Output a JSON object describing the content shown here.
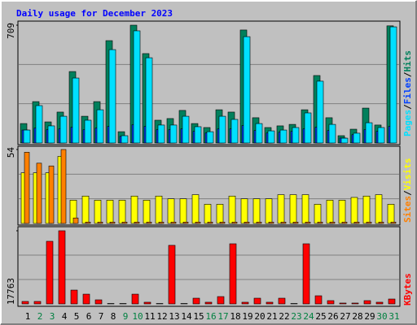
{
  "chart_data": [
    {
      "type": "bar",
      "title": "Daily usage for December 2023",
      "categories": [
        "1",
        "2",
        "3",
        "4",
        "5",
        "6",
        "7",
        "8",
        "9",
        "10",
        "11",
        "12",
        "13",
        "14",
        "15",
        "16",
        "17",
        "18",
        "19",
        "20",
        "21",
        "22",
        "23",
        "24",
        "25",
        "26",
        "27",
        "28",
        "29",
        "30",
        "31"
      ],
      "category_colors": [
        "#000000",
        "#008040",
        "#008040",
        "#000000",
        "#000000",
        "#000000",
        "#000000",
        "#000000",
        "#008040",
        "#008040",
        "#000000",
        "#000000",
        "#000000",
        "#000000",
        "#000000",
        "#008040",
        "#008040",
        "#000000",
        "#000000",
        "#000000",
        "#000000",
        "#000000",
        "#008040",
        "#008040",
        "#000000",
        "#000000",
        "#000000",
        "#000000",
        "#000000",
        "#008040",
        "#008040"
      ],
      "ylim": [
        0,
        709
      ],
      "yticks": [
        709
      ],
      "series": [
        {
          "name": "Hits",
          "color": "#00805c",
          "values": [
            117,
            249,
            127,
            186,
            430,
            161,
            249,
            616,
            68,
            709,
            538,
            137,
            147,
            196,
            117,
            93,
            200,
            186,
            680,
            152,
            93,
            103,
            112,
            200,
            406,
            152,
            44,
            83,
            210,
            108,
            705
          ]
        },
        {
          "name": "Files",
          "color": "#0040ff",
          "values": [
            78,
            90,
            80,
            85,
            95,
            80,
            90,
            100,
            40,
            110,
            100,
            80,
            80,
            85,
            70,
            60,
            85,
            85,
            105,
            75,
            60,
            65,
            70,
            85,
            95,
            75,
            30,
            50,
            80,
            70,
            100
          ]
        },
        {
          "name": "Pages",
          "color": "#00e0ff",
          "values": [
            78,
            225,
            103,
            161,
            391,
            137,
            200,
            562,
            44,
            675,
            513,
            108,
            108,
            161,
            98,
            68,
            161,
            142,
            640,
            117,
            73,
            78,
            93,
            181,
            372,
            112,
            29,
            59,
            122,
            93,
            699
          ]
        }
      ]
    },
    {
      "type": "bar",
      "ylim": [
        0,
        54
      ],
      "yticks": [
        54
      ],
      "series": [
        {
          "name": "Visits",
          "color": "#ffff00",
          "values": [
            37,
            37,
            37,
            49,
            17,
            20,
            17,
            17,
            17,
            20,
            17,
            20,
            18,
            18,
            21,
            14,
            14,
            20,
            18,
            18,
            18,
            21,
            21,
            21,
            14,
            17,
            17,
            19,
            20,
            21,
            14
          ]
        },
        {
          "name": "Sites",
          "color": "#ff8000",
          "values": [
            52,
            44,
            42,
            54,
            4,
            1,
            1,
            1,
            1,
            1,
            1,
            1,
            1,
            1,
            1,
            1,
            1,
            1,
            1,
            1,
            1,
            1,
            1,
            1,
            1,
            1,
            1,
            1,
            1,
            1,
            1
          ]
        }
      ]
    },
    {
      "type": "bar",
      "ylim": [
        0,
        17763
      ],
      "yticks": [
        17763
      ],
      "series": [
        {
          "name": "KBytes",
          "color": "#ff0000",
          "values": [
            590,
            590,
            15200,
            17763,
            3350,
            2360,
            985,
            100,
            100,
            2360,
            400,
            100,
            14220,
            100,
            1380,
            400,
            1770,
            14600,
            400,
            1380,
            400,
            1380,
            100,
            14600,
            1970,
            790,
            200,
            200,
            790,
            400,
            1180
          ]
        }
      ]
    }
  ]
}
